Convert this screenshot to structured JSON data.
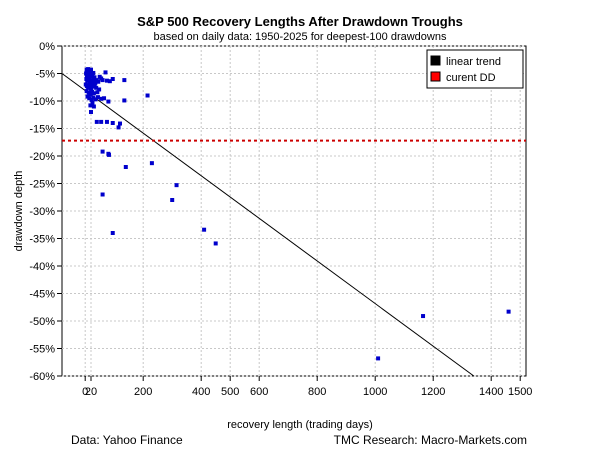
{
  "chart_data": {
    "type": "scatter",
    "title": "S&P 500 Recovery Lengths After Drawdown Troughs",
    "subtitle": "based on daily data: 1950-2025 for deepest-100 drawdowns",
    "xlabel": "recovery length (trading days)",
    "ylabel": "drawdown depth",
    "xlim": [
      -80,
      1520
    ],
    "ylim": [
      -60,
      0
    ],
    "x_ticks": [
      0,
      20,
      200,
      400,
      500,
      600,
      800,
      1000,
      1200,
      1400,
      1500
    ],
    "x_tick_labels": [
      "0",
      "20",
      "200",
      "400",
      "500",
      "600",
      "800",
      "1000",
      "1200",
      "1400",
      "1500"
    ],
    "y_ticks": [
      0,
      -5,
      -10,
      -15,
      -20,
      -25,
      -30,
      -35,
      -40,
      -45,
      -50,
      -55,
      -60
    ],
    "y_tick_labels": [
      "0%",
      "-5%",
      "-10%",
      "-15%",
      "-20%",
      "-25%",
      "-30%",
      "-35%",
      "-40%",
      "-45%",
      "-50%",
      "-55%",
      "-60%"
    ],
    "grid": true,
    "legend_position": "top-right",
    "legend": [
      {
        "label": "linear trend",
        "color": "#000000"
      },
      {
        "label": "curent DD",
        "color": "#ff0000"
      }
    ],
    "points_color": "#0000cc",
    "trend_line": {
      "color": "#000000",
      "points": [
        [
          -80,
          -5.0
        ],
        [
          1340,
          -60.0
        ]
      ]
    },
    "current_drawdown": {
      "value": -17.2,
      "color": "#cc0000"
    },
    "points": [
      [
        5,
        -4.3
      ],
      [
        8,
        -4.5
      ],
      [
        10,
        -4.2
      ],
      [
        12,
        -4.8
      ],
      [
        15,
        -4.4
      ],
      [
        18,
        -4.6
      ],
      [
        20,
        -4.3
      ],
      [
        3,
        -5.0
      ],
      [
        6,
        -5.4
      ],
      [
        9,
        -5.6
      ],
      [
        11,
        -5.2
      ],
      [
        14,
        -5.8
      ],
      [
        17,
        -5.5
      ],
      [
        22,
        -5.1
      ],
      [
        25,
        -5.3
      ],
      [
        28,
        -4.9
      ],
      [
        32,
        -5.7
      ],
      [
        4,
        -6.0
      ],
      [
        7,
        -6.3
      ],
      [
        13,
        -6.1
      ],
      [
        16,
        -6.6
      ],
      [
        19,
        -6.2
      ],
      [
        23,
        -6.8
      ],
      [
        27,
        -6.4
      ],
      [
        30,
        -6.0
      ],
      [
        35,
        -6.7
      ],
      [
        40,
        -6.2
      ],
      [
        45,
        -6.5
      ],
      [
        50,
        -5.6
      ],
      [
        55,
        -5.9
      ],
      [
        60,
        -6.2
      ],
      [
        70,
        -4.8
      ],
      [
        75,
        -6.3
      ],
      [
        85,
        -6.4
      ],
      [
        95,
        -6.0
      ],
      [
        2,
        -7.0
      ],
      [
        6,
        -7.3
      ],
      [
        10,
        -7.6
      ],
      [
        15,
        -7.1
      ],
      [
        20,
        -7.8
      ],
      [
        26,
        -7.4
      ],
      [
        33,
        -7.2
      ],
      [
        38,
        -7.6
      ],
      [
        48,
        -7.9
      ],
      [
        5,
        -8.2
      ],
      [
        12,
        -8.5
      ],
      [
        18,
        -8.8
      ],
      [
        24,
        -8.3
      ],
      [
        30,
        -8.6
      ],
      [
        42,
        -8.4
      ],
      [
        8,
        -9.2
      ],
      [
        14,
        -9.5
      ],
      [
        22,
        -9.8
      ],
      [
        28,
        -9.4
      ],
      [
        36,
        -9.7
      ],
      [
        44,
        -9.3
      ],
      [
        55,
        -9.6
      ],
      [
        65,
        -9.5
      ],
      [
        80,
        -10.1
      ],
      [
        25,
        -10.3
      ],
      [
        18,
        -10.8
      ],
      [
        30,
        -11.0
      ],
      [
        135,
        -9.9
      ],
      [
        20,
        -12.0
      ],
      [
        40,
        -13.8
      ],
      [
        55,
        -13.8
      ],
      [
        75,
        -13.8
      ],
      [
        95,
        -14.0
      ],
      [
        115,
        -14.8
      ],
      [
        120,
        -14.1
      ],
      [
        60,
        -19.2
      ],
      [
        80,
        -19.6
      ],
      [
        82,
        -19.8
      ],
      [
        140,
        -22.0
      ],
      [
        60,
        -27.0
      ],
      [
        95,
        -34.0
      ],
      [
        230,
        -21.3
      ],
      [
        215,
        -9.0
      ],
      [
        135,
        -6.2
      ],
      [
        300,
        -28.0
      ],
      [
        315,
        -25.3
      ],
      [
        410,
        -33.4
      ],
      [
        450,
        -35.9
      ],
      [
        1010,
        -56.8
      ],
      [
        1165,
        -49.1
      ],
      [
        1460,
        -48.3
      ]
    ],
    "source_left": "Data: Yahoo Finance",
    "source_right": "TMC Research: Macro-Markets.com"
  }
}
